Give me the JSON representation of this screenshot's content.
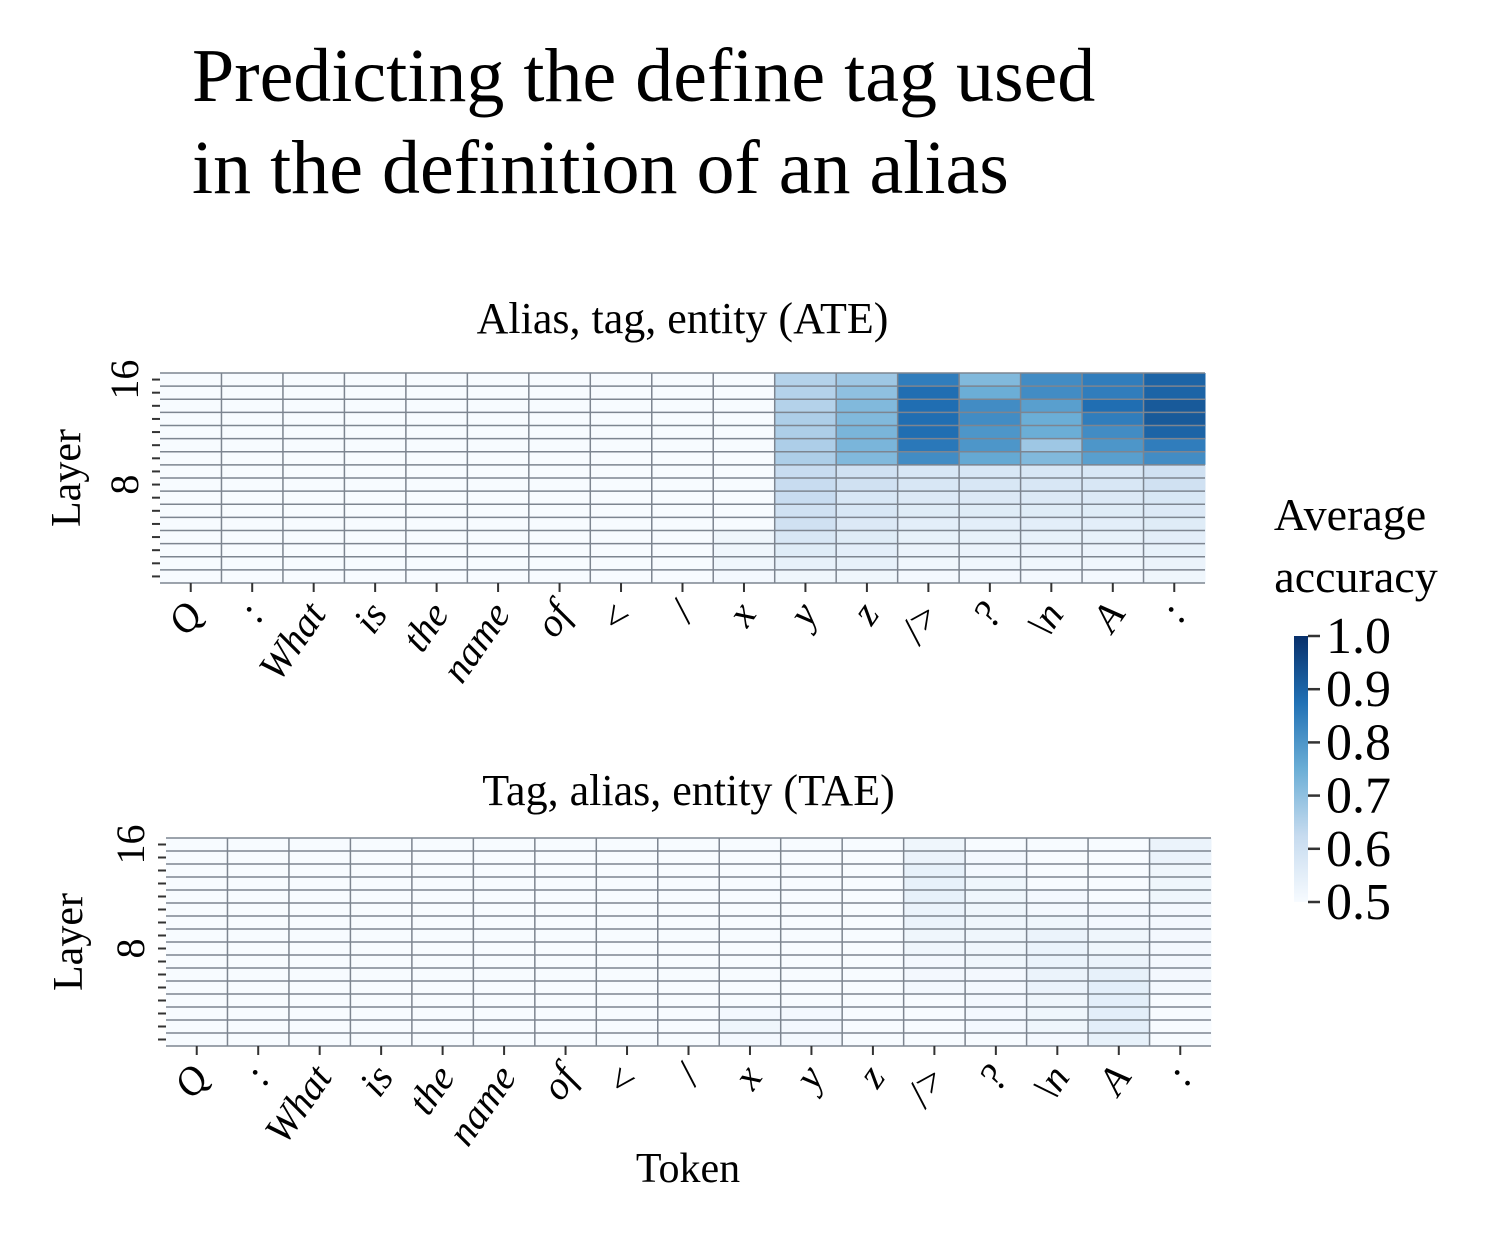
{
  "slide": {
    "title_line1": "Predicting the define tag used",
    "title_line2": "in the definition of an alias"
  },
  "colorbar": {
    "label_line1": "Average",
    "label_line2": "accuracy",
    "ticks": [
      "1.0",
      "0.9",
      "0.8",
      "0.7",
      "0.6",
      "0.5"
    ],
    "range": [
      0.5,
      1.0
    ],
    "colormap": [
      "#f7fbff",
      "#c6dbef",
      "#6baed6",
      "#2171b5",
      "#08306b"
    ]
  },
  "xlabel": "Token",
  "chart_data": [
    {
      "type": "heatmap",
      "title": "Alias, tag, entity (ATE)",
      "ylabel": "Layer",
      "y_ticks": [
        "16",
        "8"
      ],
      "layers": 16,
      "tokens": [
        "Q",
        ":",
        "What",
        "is",
        "the",
        "name",
        "of",
        "<",
        "/",
        "x",
        "y",
        "z",
        "/>",
        "?",
        "\\n",
        "A",
        ":"
      ],
      "layer_order": "top row = layer 16, bottom row = layer 1",
      "values": [
        [
          0.5,
          0.5,
          0.5,
          0.5,
          0.5,
          0.5,
          0.5,
          0.5,
          0.5,
          0.5,
          0.65,
          0.68,
          0.85,
          0.72,
          0.82,
          0.85,
          0.9
        ],
        [
          0.5,
          0.5,
          0.5,
          0.5,
          0.5,
          0.5,
          0.5,
          0.5,
          0.5,
          0.5,
          0.65,
          0.7,
          0.88,
          0.75,
          0.82,
          0.85,
          0.9
        ],
        [
          0.5,
          0.5,
          0.5,
          0.5,
          0.5,
          0.5,
          0.5,
          0.5,
          0.5,
          0.5,
          0.65,
          0.72,
          0.88,
          0.82,
          0.78,
          0.88,
          0.92
        ],
        [
          0.5,
          0.5,
          0.5,
          0.5,
          0.5,
          0.5,
          0.5,
          0.5,
          0.5,
          0.5,
          0.66,
          0.72,
          0.88,
          0.82,
          0.75,
          0.85,
          0.92
        ],
        [
          0.5,
          0.5,
          0.5,
          0.5,
          0.5,
          0.5,
          0.5,
          0.5,
          0.5,
          0.5,
          0.66,
          0.73,
          0.88,
          0.8,
          0.75,
          0.82,
          0.9
        ],
        [
          0.5,
          0.5,
          0.5,
          0.5,
          0.5,
          0.5,
          0.5,
          0.5,
          0.5,
          0.5,
          0.66,
          0.73,
          0.86,
          0.8,
          0.68,
          0.8,
          0.85
        ],
        [
          0.5,
          0.5,
          0.5,
          0.5,
          0.5,
          0.5,
          0.5,
          0.5,
          0.5,
          0.5,
          0.66,
          0.72,
          0.82,
          0.76,
          0.72,
          0.78,
          0.82
        ],
        [
          0.5,
          0.5,
          0.5,
          0.5,
          0.5,
          0.5,
          0.5,
          0.5,
          0.5,
          0.5,
          0.62,
          0.6,
          0.58,
          0.58,
          0.58,
          0.58,
          0.6
        ],
        [
          0.5,
          0.5,
          0.5,
          0.5,
          0.5,
          0.5,
          0.5,
          0.5,
          0.5,
          0.5,
          0.62,
          0.6,
          0.58,
          0.58,
          0.58,
          0.58,
          0.6
        ],
        [
          0.5,
          0.5,
          0.5,
          0.5,
          0.5,
          0.5,
          0.5,
          0.5,
          0.5,
          0.5,
          0.62,
          0.58,
          0.57,
          0.57,
          0.57,
          0.57,
          0.58
        ],
        [
          0.5,
          0.5,
          0.5,
          0.5,
          0.5,
          0.5,
          0.5,
          0.5,
          0.5,
          0.5,
          0.6,
          0.58,
          0.56,
          0.56,
          0.56,
          0.56,
          0.57
        ],
        [
          0.5,
          0.5,
          0.5,
          0.5,
          0.5,
          0.5,
          0.5,
          0.5,
          0.5,
          0.5,
          0.6,
          0.57,
          0.55,
          0.55,
          0.55,
          0.55,
          0.56
        ],
        [
          0.5,
          0.5,
          0.5,
          0.5,
          0.5,
          0.5,
          0.5,
          0.5,
          0.5,
          0.52,
          0.58,
          0.56,
          0.54,
          0.54,
          0.54,
          0.54,
          0.55
        ],
        [
          0.5,
          0.5,
          0.5,
          0.5,
          0.5,
          0.5,
          0.5,
          0.5,
          0.5,
          0.52,
          0.56,
          0.55,
          0.53,
          0.53,
          0.53,
          0.53,
          0.54
        ],
        [
          0.5,
          0.5,
          0.5,
          0.5,
          0.5,
          0.5,
          0.5,
          0.5,
          0.5,
          0.52,
          0.54,
          0.54,
          0.52,
          0.52,
          0.52,
          0.52,
          0.53
        ],
        [
          0.5,
          0.5,
          0.5,
          0.5,
          0.5,
          0.5,
          0.5,
          0.5,
          0.5,
          0.51,
          0.52,
          0.52,
          0.51,
          0.51,
          0.51,
          0.51,
          0.52
        ]
      ]
    },
    {
      "type": "heatmap",
      "title": "Tag, alias, entity (TAE)",
      "ylabel": "Layer",
      "y_ticks": [
        "16",
        "8"
      ],
      "layers": 16,
      "tokens": [
        "Q",
        ":",
        "What",
        "is",
        "the",
        "name",
        "of",
        "<",
        "/",
        "x",
        "y",
        "z",
        "/>",
        "?",
        "\\n",
        "A",
        ":"
      ],
      "layer_order": "top row = layer 16, bottom row = layer 1",
      "values": [
        [
          0.5,
          0.5,
          0.5,
          0.5,
          0.5,
          0.5,
          0.5,
          0.5,
          0.5,
          0.5,
          0.5,
          0.5,
          0.52,
          0.5,
          0.5,
          0.5,
          0.53
        ],
        [
          0.5,
          0.5,
          0.5,
          0.5,
          0.5,
          0.5,
          0.5,
          0.5,
          0.5,
          0.5,
          0.5,
          0.5,
          0.53,
          0.51,
          0.5,
          0.5,
          0.53
        ],
        [
          0.5,
          0.5,
          0.5,
          0.5,
          0.5,
          0.5,
          0.5,
          0.5,
          0.5,
          0.5,
          0.5,
          0.5,
          0.54,
          0.51,
          0.5,
          0.5,
          0.52
        ],
        [
          0.5,
          0.5,
          0.5,
          0.5,
          0.5,
          0.5,
          0.5,
          0.5,
          0.5,
          0.5,
          0.5,
          0.5,
          0.54,
          0.52,
          0.5,
          0.5,
          0.52
        ],
        [
          0.5,
          0.5,
          0.5,
          0.5,
          0.5,
          0.5,
          0.5,
          0.5,
          0.5,
          0.5,
          0.5,
          0.5,
          0.54,
          0.52,
          0.51,
          0.5,
          0.52
        ],
        [
          0.5,
          0.5,
          0.5,
          0.5,
          0.5,
          0.5,
          0.5,
          0.5,
          0.5,
          0.5,
          0.5,
          0.5,
          0.53,
          0.52,
          0.51,
          0.51,
          0.51
        ],
        [
          0.5,
          0.5,
          0.5,
          0.5,
          0.5,
          0.5,
          0.5,
          0.5,
          0.5,
          0.5,
          0.5,
          0.5,
          0.53,
          0.52,
          0.52,
          0.51,
          0.51
        ],
        [
          0.5,
          0.5,
          0.5,
          0.5,
          0.5,
          0.5,
          0.5,
          0.5,
          0.5,
          0.5,
          0.5,
          0.5,
          0.52,
          0.52,
          0.53,
          0.52,
          0.51
        ],
        [
          0.5,
          0.5,
          0.5,
          0.5,
          0.5,
          0.5,
          0.5,
          0.5,
          0.5,
          0.5,
          0.5,
          0.5,
          0.52,
          0.52,
          0.53,
          0.52,
          0.51
        ],
        [
          0.5,
          0.5,
          0.5,
          0.5,
          0.5,
          0.5,
          0.5,
          0.5,
          0.5,
          0.5,
          0.5,
          0.5,
          0.51,
          0.52,
          0.53,
          0.53,
          0.51
        ],
        [
          0.5,
          0.5,
          0.5,
          0.5,
          0.5,
          0.5,
          0.5,
          0.5,
          0.5,
          0.5,
          0.5,
          0.5,
          0.51,
          0.51,
          0.53,
          0.54,
          0.51
        ],
        [
          0.5,
          0.5,
          0.5,
          0.5,
          0.5,
          0.5,
          0.5,
          0.5,
          0.5,
          0.5,
          0.5,
          0.5,
          0.51,
          0.51,
          0.53,
          0.55,
          0.51
        ],
        [
          0.5,
          0.5,
          0.5,
          0.5,
          0.5,
          0.5,
          0.5,
          0.5,
          0.5,
          0.5,
          0.5,
          0.5,
          0.5,
          0.51,
          0.52,
          0.55,
          0.5
        ],
        [
          0.5,
          0.5,
          0.5,
          0.5,
          0.5,
          0.5,
          0.5,
          0.5,
          0.5,
          0.51,
          0.51,
          0.5,
          0.5,
          0.51,
          0.52,
          0.55,
          0.5
        ],
        [
          0.5,
          0.5,
          0.5,
          0.5,
          0.5,
          0.5,
          0.5,
          0.5,
          0.5,
          0.52,
          0.51,
          0.5,
          0.5,
          0.51,
          0.52,
          0.55,
          0.5
        ],
        [
          0.5,
          0.5,
          0.5,
          0.5,
          0.5,
          0.5,
          0.5,
          0.5,
          0.5,
          0.51,
          0.51,
          0.5,
          0.5,
          0.5,
          0.51,
          0.54,
          0.5
        ]
      ]
    }
  ]
}
